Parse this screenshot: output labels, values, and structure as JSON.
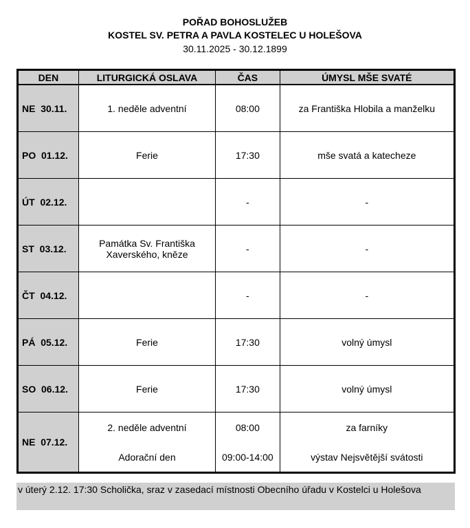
{
  "header": {
    "title": "POŘAD BOHOSLUŽEB",
    "church": "KOSTEL SV. PETRA A PAVLA KOSTELEC U HOLEŠOVA",
    "range": "30.11.2025 - 30.12.1899"
  },
  "columns": [
    "DEN",
    "LITURGICKÁ OSLAVA",
    "ČAS",
    "ÚMYSL MŠE SVATÉ"
  ],
  "rows": [
    {
      "day": "NE  30.11.",
      "feast": "1. neděle adventní",
      "time": "08:00",
      "intention": "za Františka Hlobila a manželku"
    },
    {
      "day": "PO  01.12.",
      "feast": "Ferie",
      "time": "17:30",
      "intention": "mše svatá a katecheze"
    },
    {
      "day": "ÚT  02.12.",
      "feast": "",
      "time": "-",
      "intention": "-"
    },
    {
      "day": "ST  03.12.",
      "feast": "Památka Sv. Františka Xaverského, kněze",
      "time": "-",
      "intention": "-"
    },
    {
      "day": "ČT  04.12.",
      "feast": "",
      "time": "-",
      "intention": "-"
    },
    {
      "day": "PÁ  05.12.",
      "feast": "Ferie",
      "time": "17:30",
      "intention": "volný úmysl"
    },
    {
      "day": "SO  06.12.",
      "feast": "Ferie",
      "time": "17:30",
      "intention": "volný úmysl"
    }
  ],
  "last_row": {
    "day": "NE  07.12.",
    "feast": [
      "2. neděle adventní",
      "Adorační den"
    ],
    "time": [
      "08:00",
      "09:00-14:00"
    ],
    "intention": [
      "za farníky",
      "výstav Nejsvětější svátosti"
    ]
  },
  "note": "v úterý 2.12. 17:30 Scholička, sraz v zasedací místnosti Obecního úřadu v Kostelci u Holešova"
}
